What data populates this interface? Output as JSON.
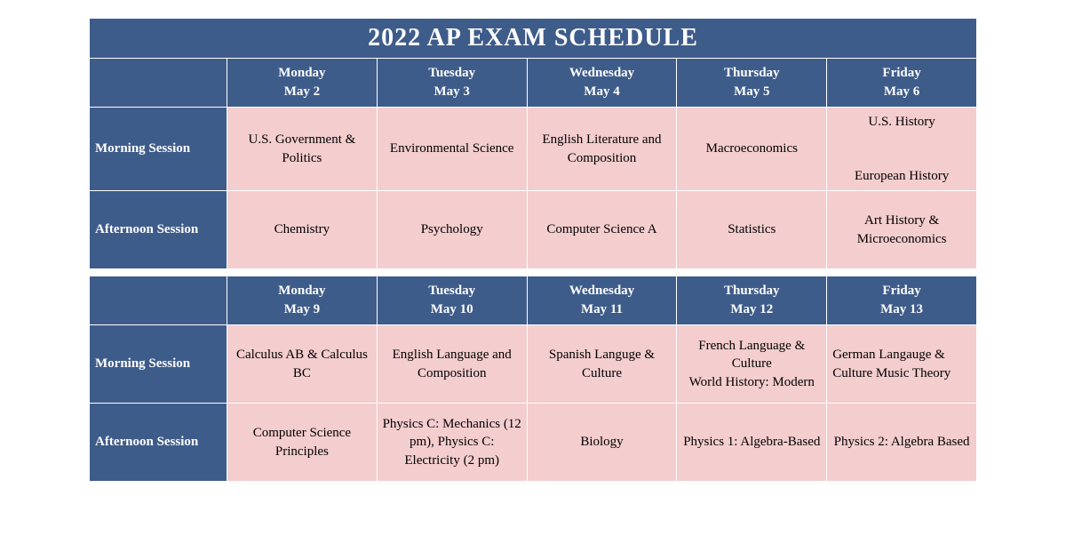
{
  "title": "2022 AP EXAM SCHEDULE",
  "colors": {
    "header_bg": "#3e5c8a",
    "header_text": "#ffffff",
    "cell_bg": "#f4cdcf",
    "cell_text": "#000000",
    "border": "#ffffff"
  },
  "week1": {
    "days": [
      {
        "name": "Monday",
        "date": "May 2"
      },
      {
        "name": "Tuesday",
        "date": "May 3"
      },
      {
        "name": "Wednesday",
        "date": "May 4"
      },
      {
        "name": "Thursday",
        "date": "May 5"
      },
      {
        "name": "Friday",
        "date": "May 6"
      }
    ],
    "morning_label": "Morning Session",
    "afternoon_label": "Afternoon Session",
    "morning": [
      "U.S. Government & Politics",
      "Environmental Science",
      "English Literature and Composition",
      "Macroeconomics",
      "U.S. History\n\nEuropean History"
    ],
    "afternoon": [
      "Chemistry",
      "Psychology",
      "Computer Science A",
      "Statistics",
      "Art History & Microeconomics"
    ]
  },
  "week2": {
    "days": [
      {
        "name": "Monday",
        "date": "May 9"
      },
      {
        "name": "Tuesday",
        "date": "May 10"
      },
      {
        "name": "Wednesday",
        "date": "May 11"
      },
      {
        "name": "Thursday",
        "date": "May 12"
      },
      {
        "name": "Friday",
        "date": "May 13"
      }
    ],
    "morning_label": "Morning Session",
    "afternoon_label": "Afternoon Session",
    "morning": [
      "Calculus AB & Calculus BC",
      "English Language and Composition",
      "Spanish Languge & Culture",
      "French Language & Culture\nWorld History: Modern",
      "German Langauge & Culture     Music Theory"
    ],
    "afternoon": [
      "Computer Science Principles",
      "Physics C: Mechanics (12 pm), Physics C: Electricity (2 pm)",
      "Biology",
      "Physics 1: Algebra-Based",
      "Physics 2: Algebra Based"
    ]
  }
}
